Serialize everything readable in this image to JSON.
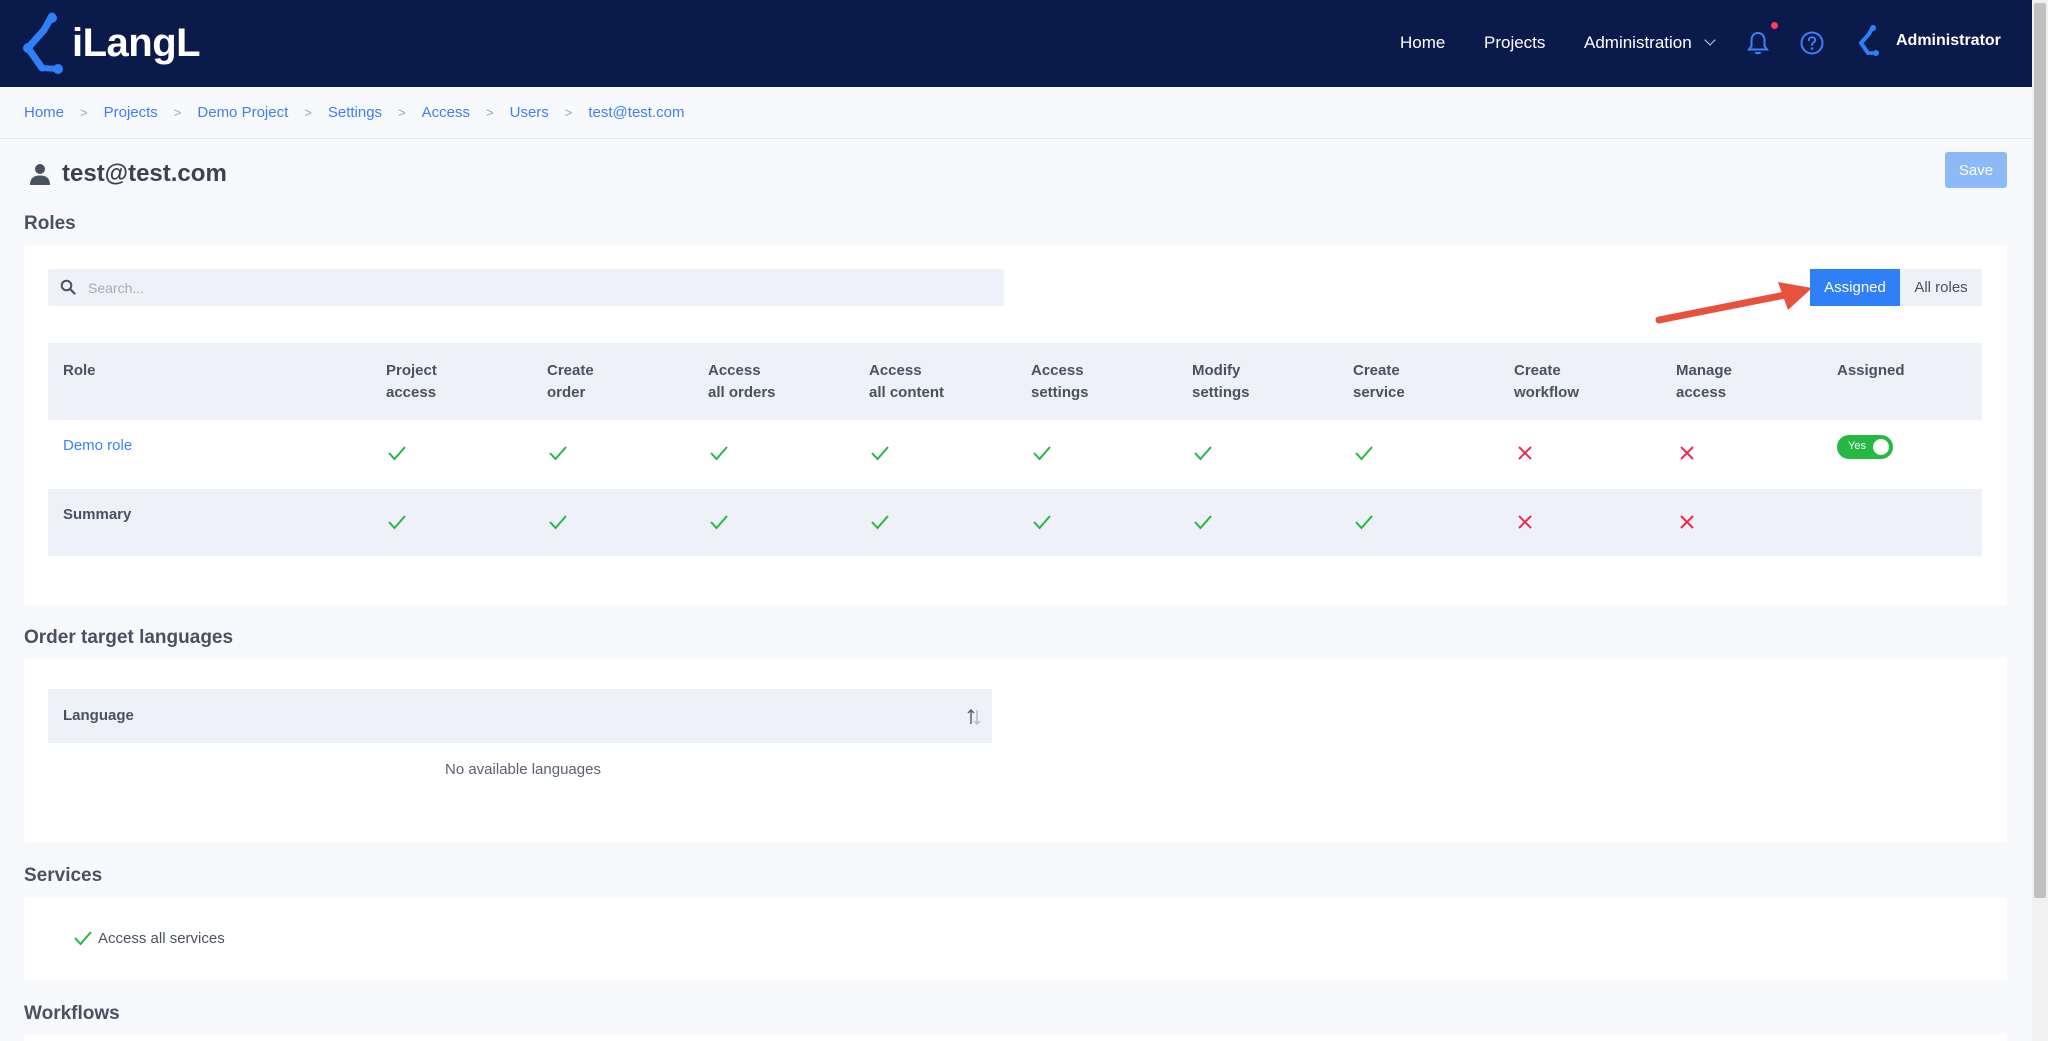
{
  "app": {
    "logo_text": "iLangL"
  },
  "nav": {
    "home": "Home",
    "projects": "Projects",
    "administration": "Administration",
    "user": "Administrator"
  },
  "breadcrumb": [
    "Home",
    "Projects",
    "Demo Project",
    "Settings",
    "Access",
    "Users",
    "test@test.com"
  ],
  "page": {
    "title": "test@test.com",
    "save_label": "Save"
  },
  "roles": {
    "section_title": "Roles",
    "search_placeholder": "Search...",
    "filter_assigned": "Assigned",
    "filter_all": "All roles",
    "columns": [
      "Role",
      "Project\naccess",
      "Create\norder",
      "Access\nall orders",
      "Access\nall content",
      "Access\nsettings",
      "Modify\nsettings",
      "Create\nservice",
      "Create\nworkflow",
      "Manage\naccess",
      "Assigned"
    ],
    "rows": [
      {
        "name": "Demo role",
        "permissions": [
          true,
          true,
          true,
          true,
          true,
          true,
          true,
          false,
          false
        ],
        "assigned_label": "Yes"
      }
    ],
    "summary": {
      "name": "Summary",
      "permissions": [
        true,
        true,
        true,
        true,
        true,
        true,
        true,
        false,
        false
      ]
    }
  },
  "languages": {
    "section_title": "Order target languages",
    "column": "Language",
    "empty": "No available languages"
  },
  "services": {
    "section_title": "Services",
    "item": "Access all services"
  },
  "workflows": {
    "section_title": "Workflows"
  },
  "colors": {
    "topbar": "#0a1a4a",
    "accent": "#2f80f7",
    "check": "#25b842",
    "cross": "#ef2b4b",
    "annotation_arrow": "#e8513c"
  }
}
